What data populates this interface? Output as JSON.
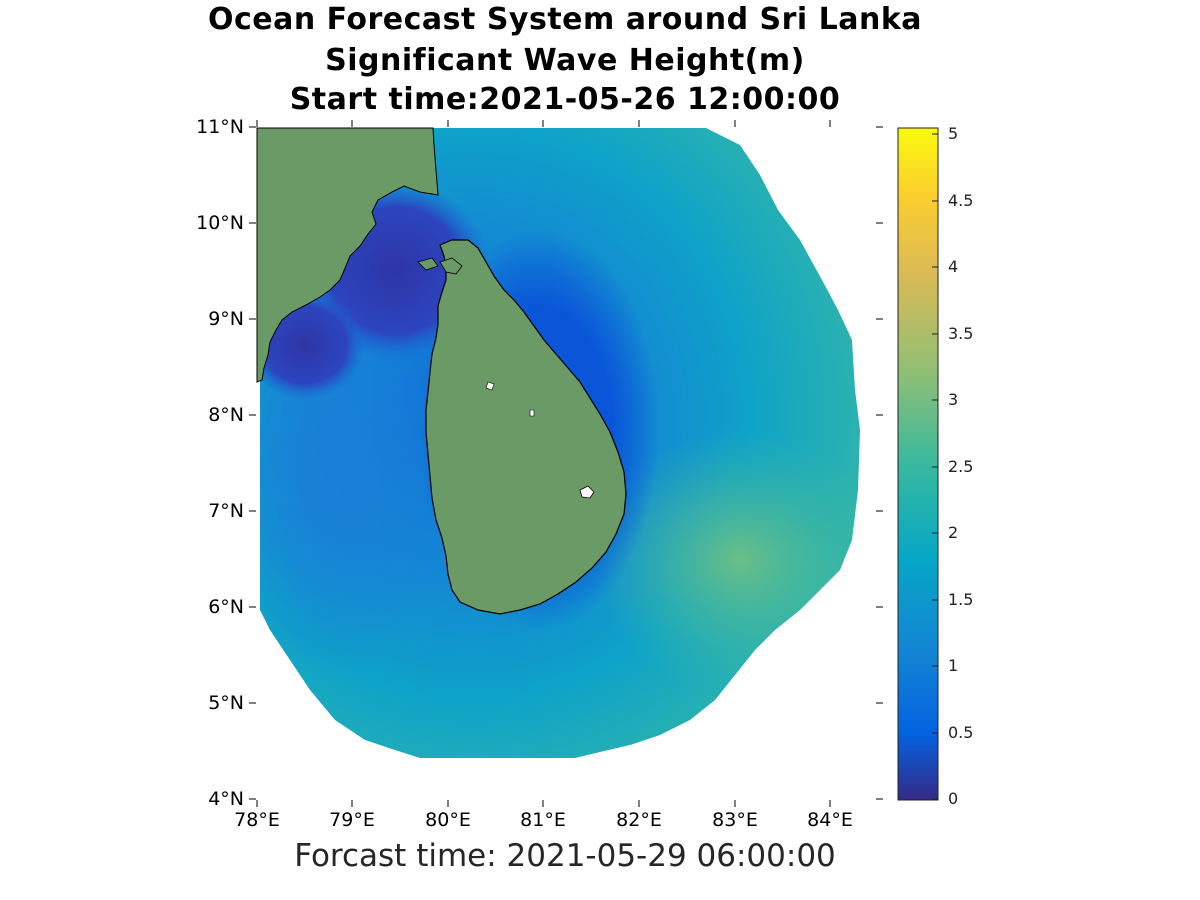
{
  "title": {
    "line1": "Ocean Forecast System around Sri Lanka",
    "line2": "Significant Wave Height(m)",
    "line3": "Start time:2021-05-26 12:00:00"
  },
  "footer": {
    "forecast_time": "Forcast time: 2021-05-29 06:00:00"
  },
  "map": {
    "lat_ticks": [
      "4°N",
      "5°N",
      "6°N",
      "7°N",
      "8°N",
      "9°N",
      "10°N",
      "11°N"
    ],
    "lon_ticks": [
      "78°E",
      "79°E",
      "80°E",
      "81°E",
      "82°E",
      "83°E",
      "84°E"
    ],
    "lat_range": [
      4,
      11
    ],
    "lon_range": [
      78,
      84.5
    ],
    "land_color": "#6a9a65"
  },
  "colorbar": {
    "ticks": [
      "0",
      "0.5",
      "1",
      "1.5",
      "2",
      "2.5",
      "3",
      "3.5",
      "4",
      "4.5",
      "5"
    ],
    "range": [
      0,
      5.05
    ],
    "colormap": "parula",
    "stops": [
      "#352a87",
      "#0363e1",
      "#1485d4",
      "#06a7c6",
      "#38b99e",
      "#92bf73",
      "#d9ba56",
      "#fcce2e",
      "#f9fb0e"
    ]
  }
}
